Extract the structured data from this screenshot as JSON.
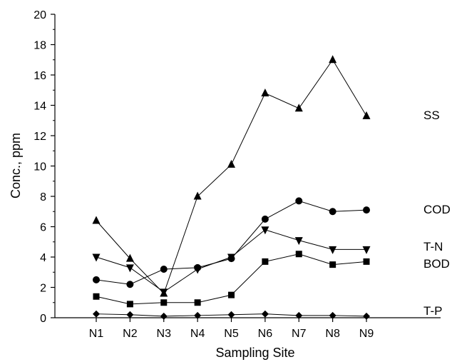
{
  "chart_data": {
    "type": "line",
    "xlabel": "Sampling Site",
    "ylabel": "Conc., ppm",
    "categories": [
      "N1",
      "N2",
      "N3",
      "N4",
      "N5",
      "N6",
      "N7",
      "N8",
      "N9"
    ],
    "ylim": [
      0,
      20
    ],
    "yticks": [
      "0",
      "2",
      "4",
      "6",
      "8",
      "10",
      "12",
      "14",
      "16",
      "18",
      "20"
    ],
    "grid": false,
    "legend": "inline labels at right end of series",
    "series": [
      {
        "name": "SS",
        "marker": "triangle-up",
        "values": [
          6.4,
          3.9,
          1.6,
          8.0,
          10.1,
          14.8,
          13.8,
          17.0,
          13.3
        ]
      },
      {
        "name": "COD",
        "marker": "circle",
        "values": [
          2.5,
          2.2,
          3.2,
          3.3,
          3.9,
          6.5,
          7.7,
          7.0,
          7.1
        ]
      },
      {
        "name": "T-N",
        "marker": "triangle-down",
        "values": [
          4.0,
          3.3,
          1.7,
          3.2,
          4.0,
          5.8,
          5.1,
          4.5,
          4.5
        ]
      },
      {
        "name": "BOD",
        "marker": "square",
        "values": [
          1.4,
          0.9,
          1.0,
          1.0,
          1.5,
          3.7,
          4.2,
          3.5,
          3.7
        ]
      },
      {
        "name": "T-P",
        "marker": "diamond",
        "values": [
          0.25,
          0.2,
          0.1,
          0.15,
          0.2,
          0.25,
          0.15,
          0.15,
          0.1
        ]
      }
    ]
  }
}
